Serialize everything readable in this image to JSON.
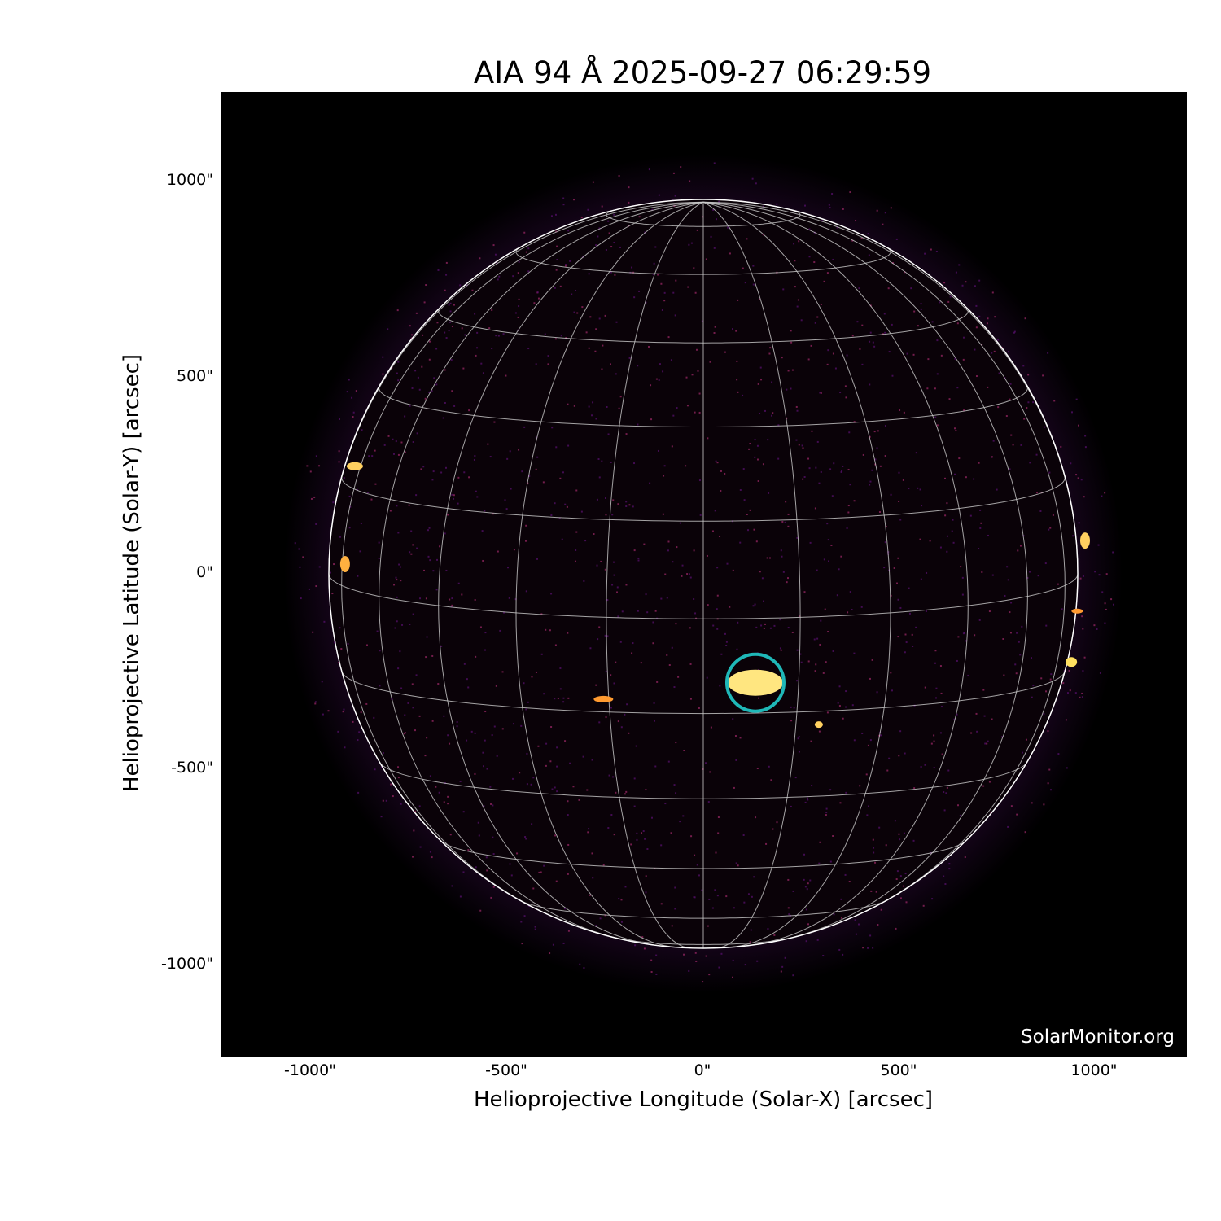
{
  "title": "AIA 94 Å 2025-09-27 06:29:59",
  "x_axis": {
    "label": "Helioprojective Longitude (Solar-X) [arcsec]",
    "ticks": [
      "-1000\"",
      "-500\"",
      "0\"",
      "500\"",
      "1000\""
    ]
  },
  "y_axis": {
    "label": "Helioprojective Latitude (Solar-Y) [arcsec]",
    "ticks": [
      "1000\"",
      "500\"",
      "0\"",
      "-500\"",
      "-1000\""
    ]
  },
  "watermark": "SolarMonitor.org",
  "colors": {
    "background": "#000000",
    "grid": "#cccccc",
    "highlight_circle": "#1fb8b8",
    "active_region": "#ffe680"
  },
  "colormap": "inferno",
  "highlight": {
    "x_arcsec": 133,
    "y_arcsec": -278,
    "shape": "circle"
  }
}
